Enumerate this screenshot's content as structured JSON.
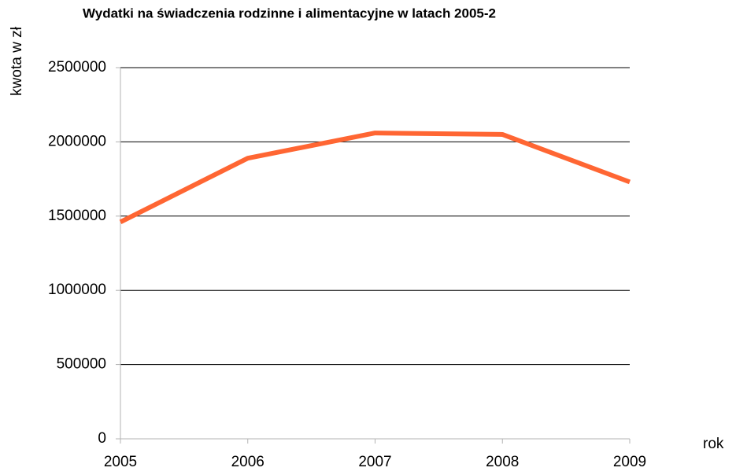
{
  "chart_data": {
    "type": "line",
    "title": "Wydatki na świadczenia rodzinne i alimentacyjne w latach 2005-2",
    "y_label": "kwota w zł",
    "x_label": "rok",
    "x": [
      2005,
      2006,
      2007,
      2008,
      2009
    ],
    "series": [
      {
        "name": "Wydatki",
        "color": "#ff6633",
        "values": [
          1460000,
          1890000,
          2060000,
          2050000,
          1730000
        ]
      }
    ],
    "xlim": [
      2005,
      2009
    ],
    "xticks": [
      2005,
      2006,
      2007,
      2008,
      2009
    ],
    "ylim": [
      0,
      2500000
    ],
    "yticks": [
      0,
      500000,
      1000000,
      1500000,
      2000000,
      2500000
    ],
    "grid": true,
    "legend": false
  }
}
